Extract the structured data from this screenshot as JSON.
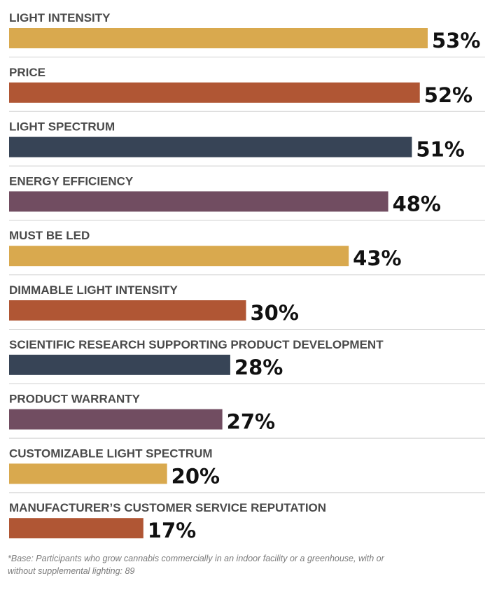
{
  "chart_data": {
    "type": "bar",
    "orientation": "horizontal",
    "categories": [
      "LIGHT INTENSITY",
      "PRICE",
      "LIGHT SPECTRUM",
      "ENERGY EFFICIENCY",
      "MUST BE LED",
      "DIMMABLE LIGHT INTENSITY",
      "SCIENTIFIC RESEARCH SUPPORTING PRODUCT DEVELOPMENT",
      "PRODUCT WARRANTY",
      "CUSTOMIZABLE LIGHT SPECTRUM",
      "MANUFACTURER’S CUSTOMER SERVICE REPUTATION"
    ],
    "values": [
      53,
      52,
      51,
      48,
      43,
      30,
      28,
      27,
      20,
      17
    ],
    "value_labels": [
      "53%",
      "52%",
      "51%",
      "48%",
      "43%",
      "30%",
      "28%",
      "27%",
      "20%",
      "17%"
    ],
    "bar_colors": [
      "#d9a94e",
      "#b05634",
      "#374456",
      "#714d61",
      "#d9a94e",
      "#b05634",
      "#374456",
      "#714d61",
      "#d9a94e",
      "#b05634"
    ],
    "unit": "%",
    "xlim": [
      0,
      53
    ],
    "grid": false,
    "legend": "none"
  },
  "footnote": "*Base: Participants who grow cannabis commercially in an indoor facility or a greenhouse, with or without supplemental lighting: 89"
}
